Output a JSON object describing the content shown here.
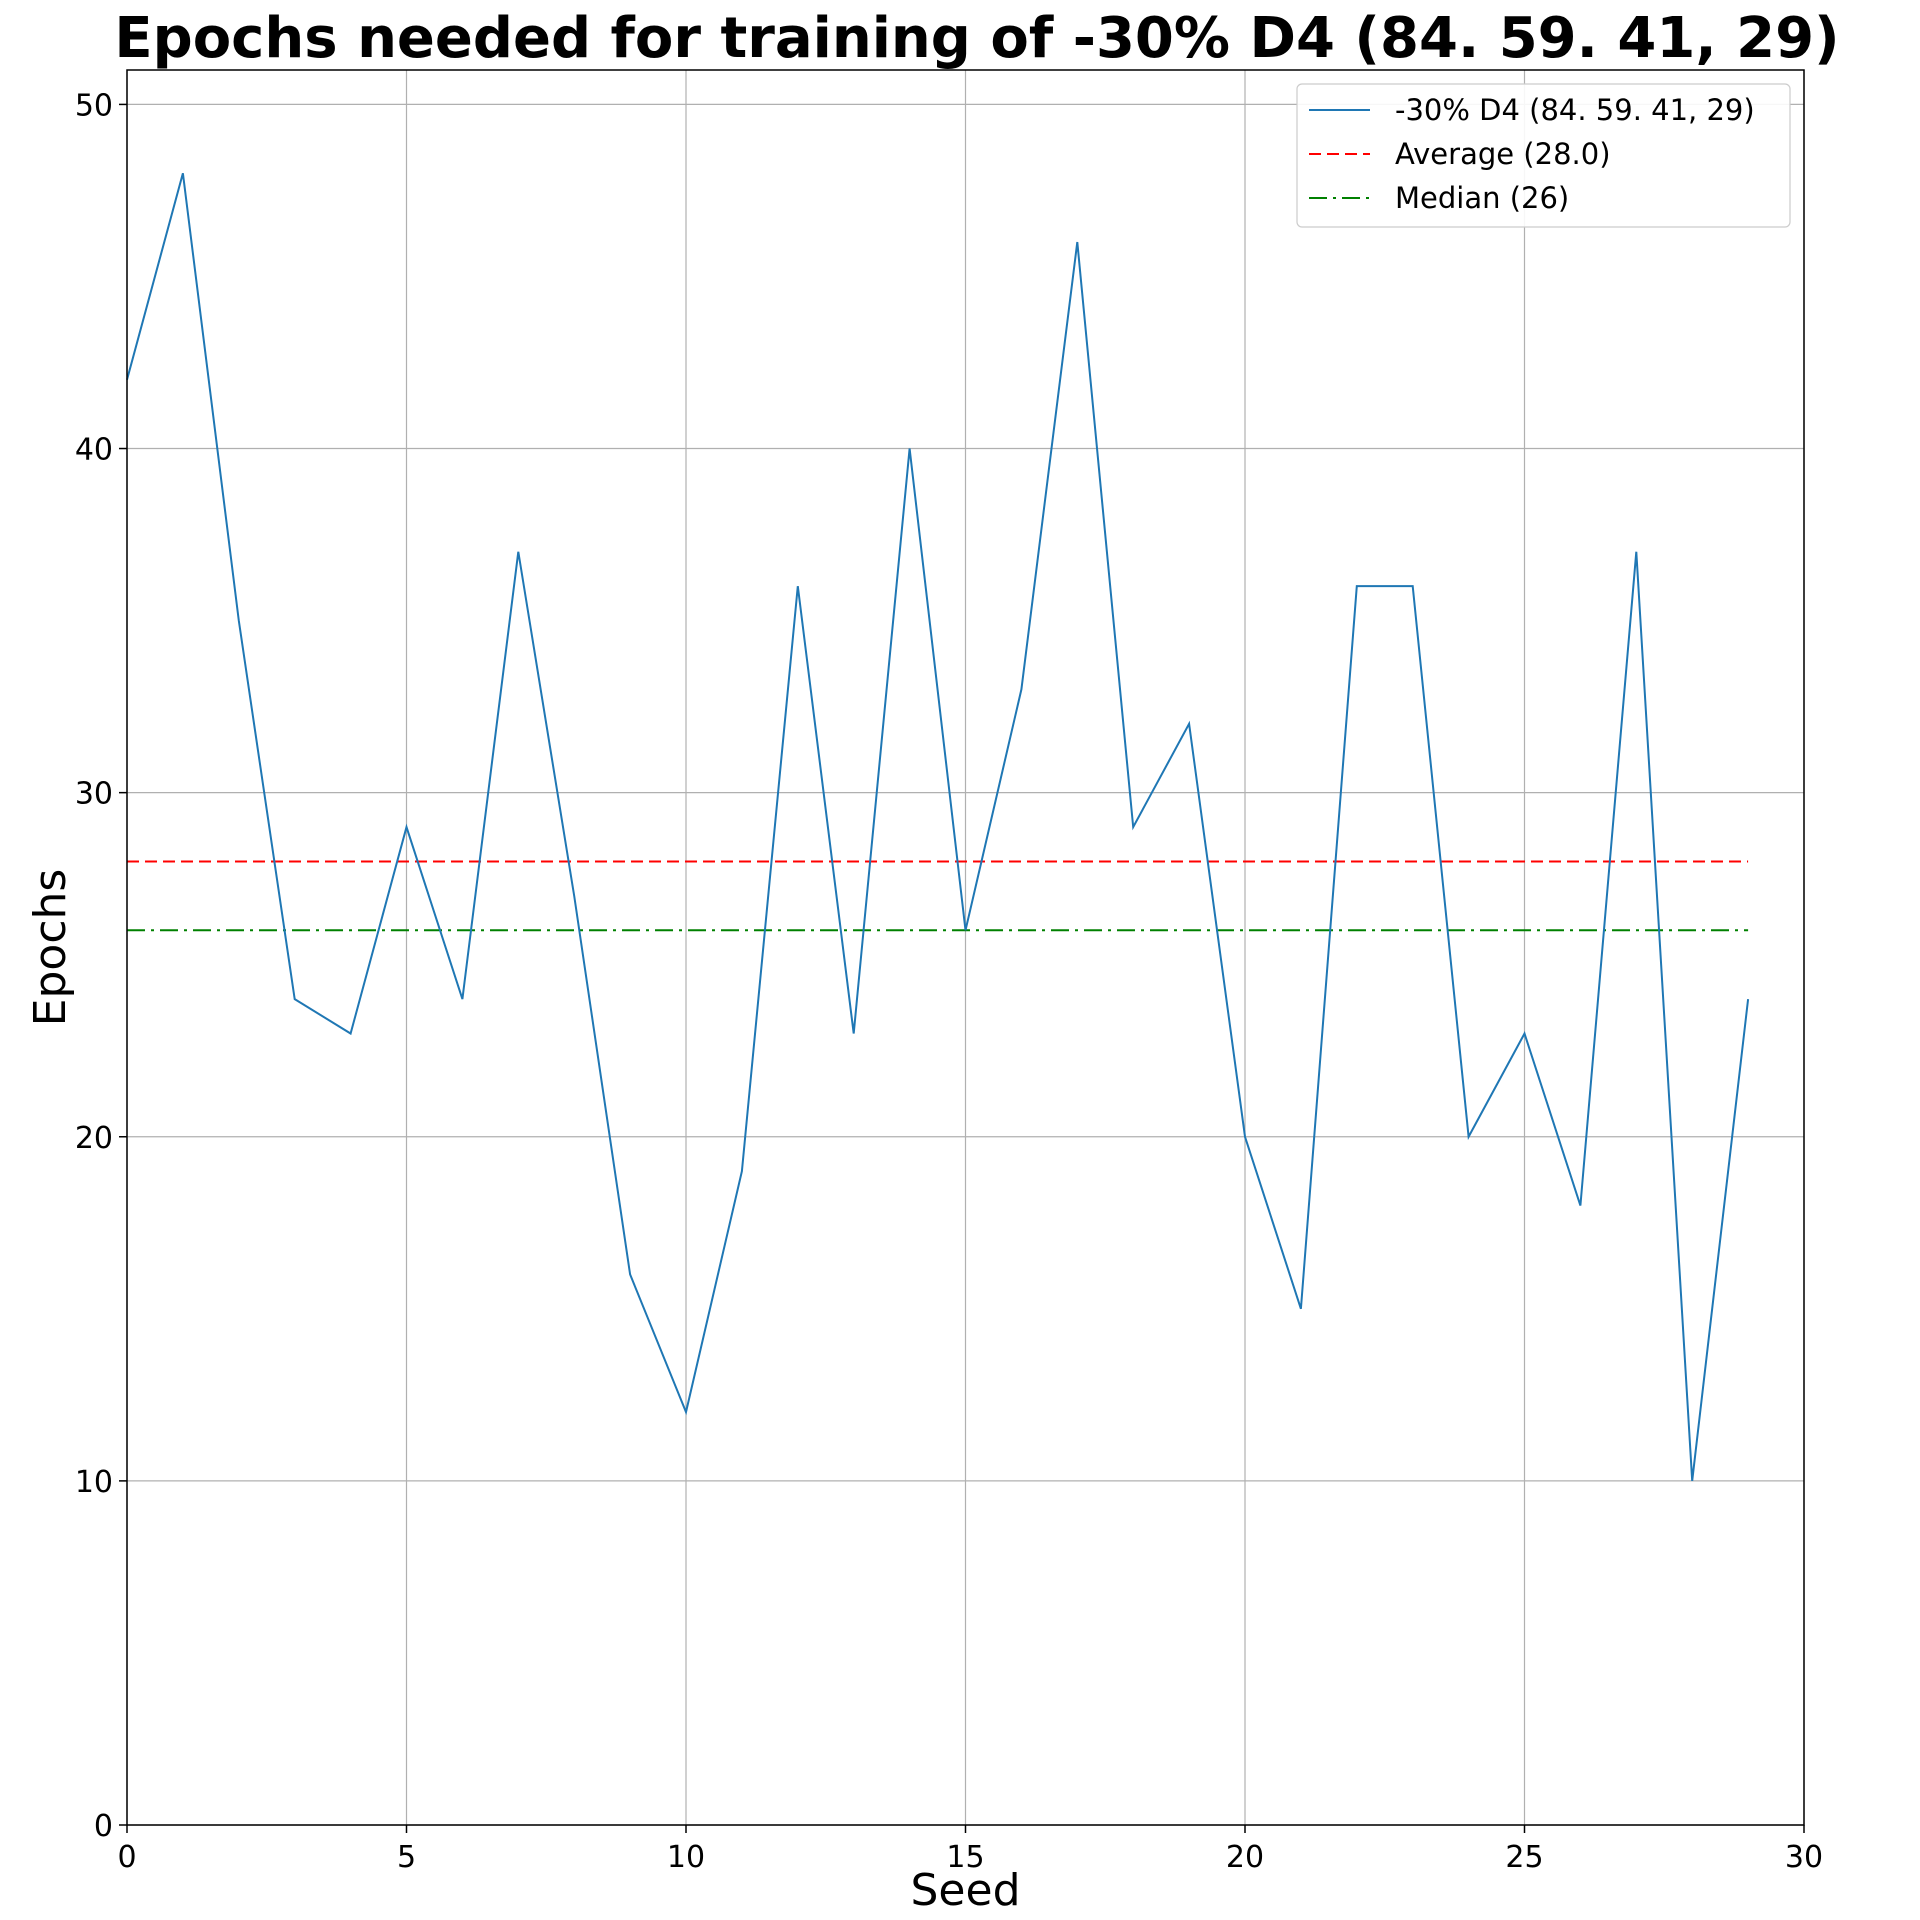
{
  "chart_data": {
    "type": "line",
    "title": "Epochs needed for training of -30% D4 (84. 59. 41, 29)",
    "xlabel": "Seed",
    "ylabel": "Epochs",
    "xlim": [
      0,
      30
    ],
    "ylim": [
      0,
      51
    ],
    "xticks": [
      0,
      5,
      10,
      15,
      20,
      25,
      30
    ],
    "yticks": [
      0,
      10,
      20,
      30,
      40,
      50
    ],
    "grid": true,
    "legend_position": "top-right",
    "x": [
      0,
      1,
      2,
      3,
      4,
      5,
      6,
      7,
      8,
      9,
      10,
      11,
      12,
      13,
      14,
      15,
      16,
      17,
      18,
      19,
      20,
      21,
      22,
      23,
      24,
      25,
      26,
      27,
      28,
      29
    ],
    "series": [
      {
        "name": "-30% D4 (84. 59. 41, 29)",
        "style": "solid",
        "color": "#1f77b4",
        "values": [
          42,
          48,
          35,
          24,
          23,
          29,
          24,
          37,
          27,
          16,
          12,
          19,
          36,
          23,
          40,
          26,
          33,
          46,
          29,
          32,
          20,
          15,
          36,
          36,
          20,
          23,
          18,
          37,
          10,
          24
        ]
      }
    ],
    "reference_lines": [
      {
        "name": "Average (28.0)",
        "value": 28.0,
        "style": "dashed",
        "color": "#ff0000"
      },
      {
        "name": "Median (26)",
        "value": 26,
        "style": "dashdot",
        "color": "#008000"
      }
    ]
  }
}
